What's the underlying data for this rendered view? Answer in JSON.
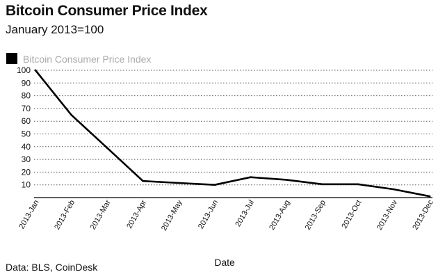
{
  "title": "Bitcoin Consumer Price Index",
  "subtitle": "January 2013=100",
  "source": "Data: BLS, CoinDesk",
  "colors": {
    "line": "#000000",
    "grid": "#555555",
    "legend_text": "#a9a9a9"
  },
  "chart_data": {
    "type": "line",
    "title": "Bitcoin Consumer Price Index",
    "subtitle": "January 2013=100",
    "xlabel": "Date",
    "ylabel": "",
    "categories": [
      "2013-Jan",
      "2013-Feb",
      "2013-Mar",
      "2013-Apr",
      "2013-May",
      "2013-Jun",
      "2013-Jul",
      "2013-Aug",
      "2013-Sep",
      "2013-Oct",
      "2013-Nov",
      "2013-Dec"
    ],
    "y_ticks": [
      10,
      20,
      30,
      40,
      50,
      60,
      70,
      80,
      90,
      100
    ],
    "ylim": [
      0,
      100
    ],
    "grid": "horizontal dotted",
    "legend_position": "top-left",
    "series": [
      {
        "name": "Bitcoin Consumer Price Index",
        "values": [
          100,
          65,
          39,
          13,
          11.5,
          10,
          16,
          14,
          10.5,
          10.5,
          6.5,
          1
        ]
      }
    ]
  }
}
